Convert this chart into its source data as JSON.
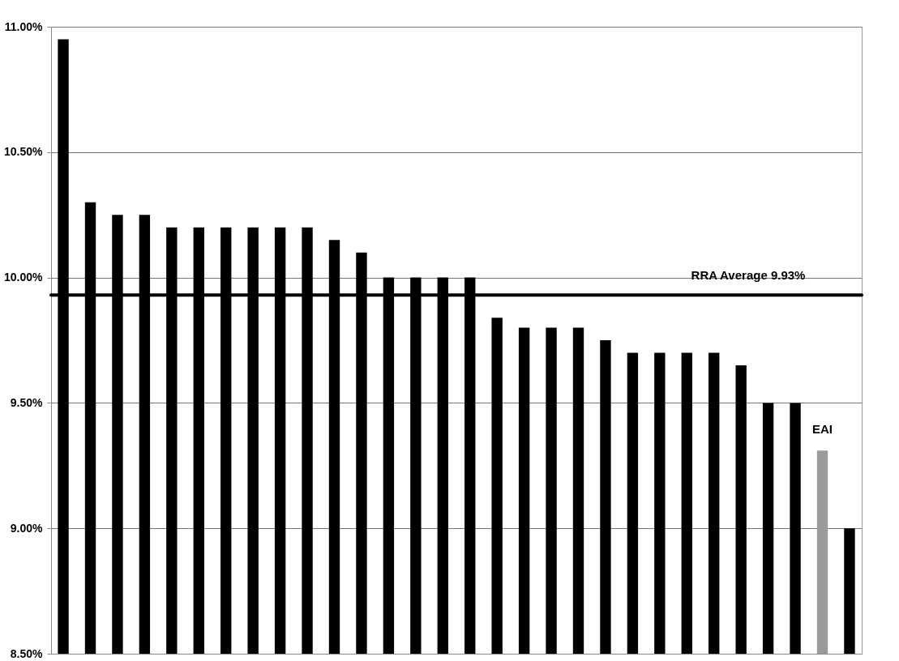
{
  "chart_data": {
    "type": "bar",
    "categories": [
      null,
      null,
      null,
      null,
      null,
      null,
      null,
      null,
      null,
      null,
      null,
      null,
      null,
      null,
      null,
      null,
      null,
      null,
      null,
      null,
      null,
      null,
      null,
      null,
      null,
      null,
      null,
      null,
      "EAI",
      null
    ],
    "values": [
      10.95,
      10.3,
      10.25,
      10.25,
      10.2,
      10.2,
      10.2,
      10.2,
      10.2,
      10.2,
      10.15,
      10.1,
      10.0,
      10.0,
      10.0,
      10.0,
      9.84,
      9.8,
      9.8,
      9.8,
      9.75,
      9.7,
      9.7,
      9.7,
      9.7,
      9.65,
      9.5,
      9.5,
      9.31,
      9.0
    ],
    "colors": [
      "#000000",
      "#000000",
      "#000000",
      "#000000",
      "#000000",
      "#000000",
      "#000000",
      "#000000",
      "#000000",
      "#000000",
      "#000000",
      "#000000",
      "#000000",
      "#000000",
      "#000000",
      "#000000",
      "#000000",
      "#000000",
      "#000000",
      "#000000",
      "#000000",
      "#000000",
      "#000000",
      "#000000",
      "#000000",
      "#000000",
      "#000000",
      "#000000",
      "#9a9a9a",
      "#000000"
    ],
    "ylim": [
      8.5,
      11.0
    ],
    "yticks": [
      {
        "value": 8.5,
        "label": "8.50%"
      },
      {
        "value": 9.0,
        "label": "9.00%"
      },
      {
        "value": 9.5,
        "label": "9.50%"
      },
      {
        "value": 10.0,
        "label": "10.00%"
      },
      {
        "value": 10.5,
        "label": "10.50%"
      },
      {
        "value": 11.0,
        "label": "11.00%"
      }
    ],
    "grid": "y",
    "ref_lines": [
      {
        "axis": "y",
        "value": 9.93,
        "label": "RRA Average 9.93%",
        "color": "#000000"
      }
    ]
  }
}
